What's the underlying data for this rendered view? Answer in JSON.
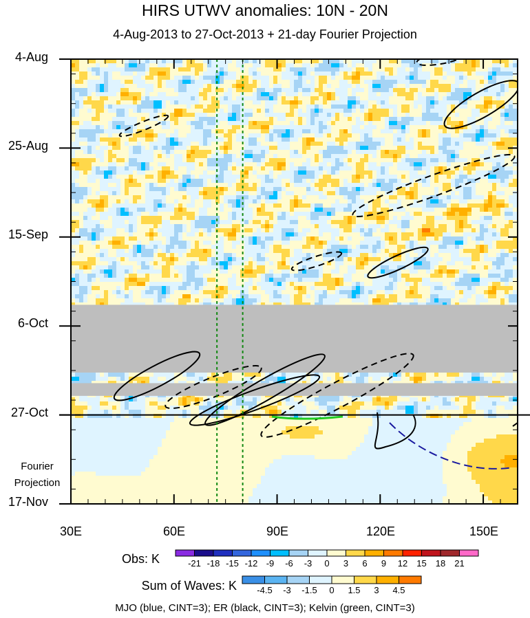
{
  "chart_data": {
    "type": "heatmap",
    "title": "HIRS UTWV anomalies: 10N - 20N",
    "subtitle": "4-Aug-2013 to 27-Oct-2013 + 21-day Fourier Projection",
    "x_axis": {
      "range": [
        30,
        160
      ],
      "tick_values": [
        30,
        60,
        90,
        120,
        150
      ],
      "tick_labels": [
        "30E",
        "60E",
        "90E",
        "120E",
        "150E"
      ]
    },
    "y_axis": {
      "range_days": [
        0,
        105
      ],
      "tick_days": [
        0,
        21,
        42,
        63,
        84,
        105
      ],
      "tick_labels": [
        "4-Aug",
        "25-Aug",
        "15-Sep",
        "6-Oct",
        "27-Oct",
        "17-Nov"
      ]
    },
    "projection_label": [
      "Fourier",
      "Projection"
    ],
    "obs_colorbar": {
      "label": "Obs: K",
      "levels": [
        "-21",
        "-18",
        "-15",
        "-12",
        "-9",
        "-6",
        "-3",
        "0",
        "3",
        "6",
        "9",
        "12",
        "15",
        "18",
        "21"
      ],
      "colors": [
        "#8a2be2",
        "#1a0d8c",
        "#1f2fbf",
        "#3366dd",
        "#1e90ff",
        "#00bfff",
        "#a6d4f5",
        "#dff4ff",
        "#fffbd0",
        "#ffd84a",
        "#ffb000",
        "#ff7a00",
        "#ff2200",
        "#c0141c",
        "#a0282c",
        "#ff69c8"
      ]
    },
    "waves_colorbar": {
      "label": "Sum of Waves: K",
      "levels": [
        "-4.5",
        "-3",
        "-1.5",
        "0",
        "1.5",
        "3",
        "4.5"
      ],
      "colors": [
        "#3a8fe6",
        "#5ab4f2",
        "#a6d4f5",
        "#dff4ff",
        "#fffbd0",
        "#ffd84a",
        "#ffb000",
        "#ff7a00"
      ]
    },
    "vertical_lines_lon": [
      72.5,
      80
    ],
    "missing_data_days": [
      [
        58,
        74
      ],
      [
        76.5,
        79.5
      ]
    ],
    "current_date_day": 84,
    "wave_legend": "MJO (blue, CINT=3); ER (black, CINT=3); Kelvin (green, CINT=3)"
  }
}
